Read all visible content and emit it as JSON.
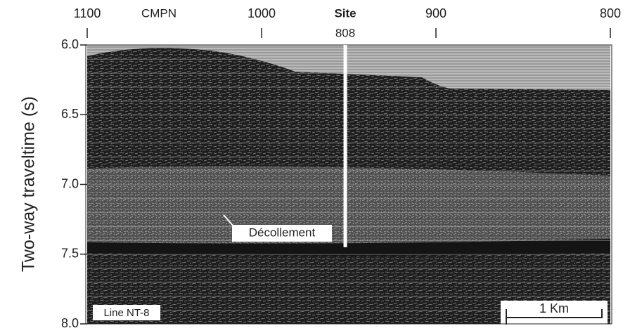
{
  "chart_data": {
    "type": "seismic",
    "ylabel": "Two-way traveltime (s)",
    "xlabel": "CMPN",
    "ylim": [
      6.0,
      8.0
    ],
    "yticks": [
      {
        "value": 6,
        "label": "6.0"
      },
      6.5,
      {
        "value": 7,
        "label": "7.0"
      },
      7.5,
      {
        "value": 8,
        "label": "8.0"
      }
    ],
    "xlim": [
      1100,
      800
    ],
    "xticks": [
      1100,
      1000,
      900,
      800
    ],
    "site": {
      "title": "Site",
      "number": "808",
      "x": 952
    },
    "annotations": {
      "decollement": "Décollement",
      "line": "Line NT-8",
      "scale": "1 Km"
    }
  }
}
